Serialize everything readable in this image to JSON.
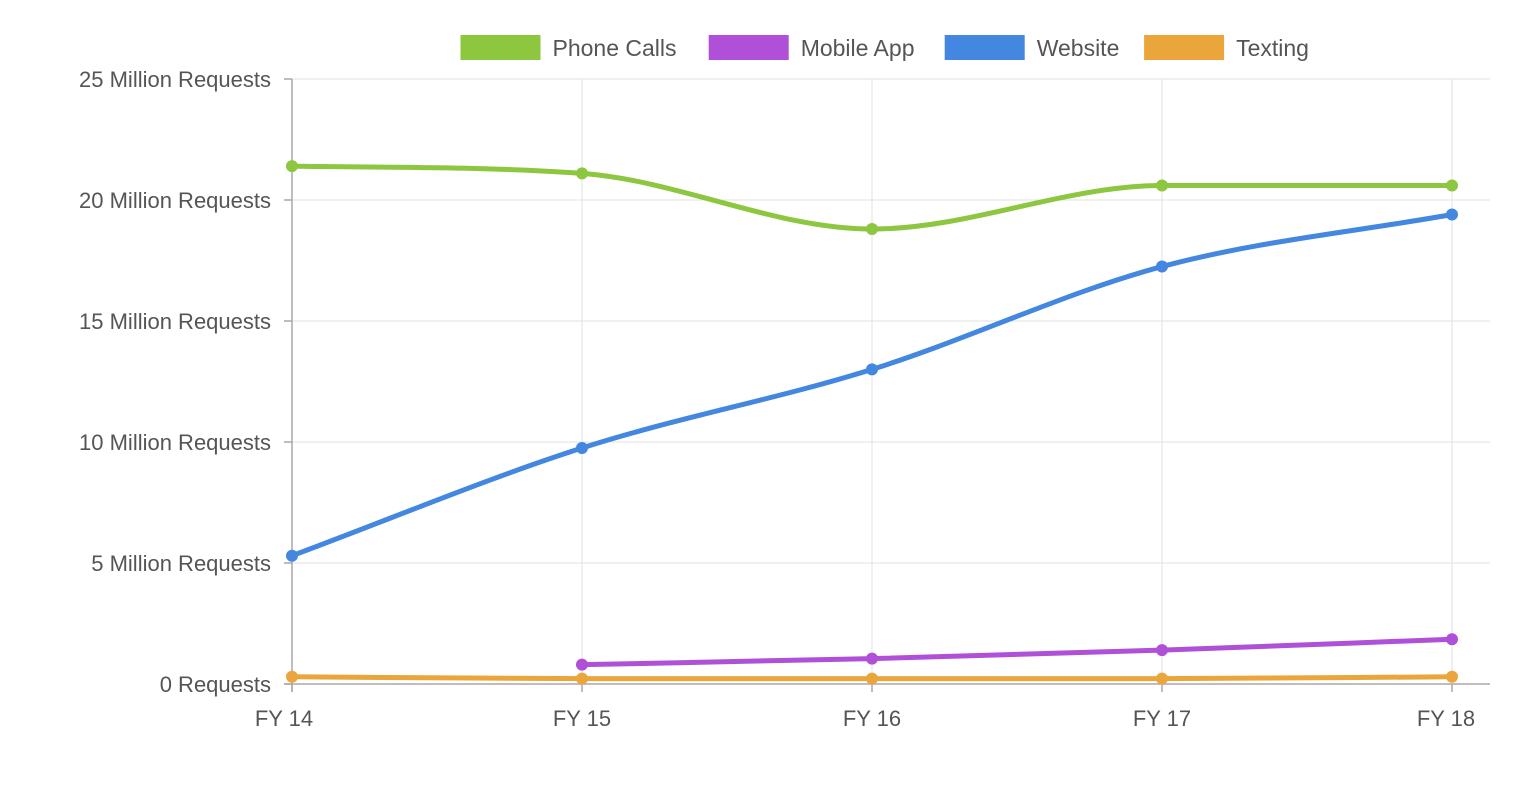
{
  "chart_data": {
    "type": "line",
    "title": "",
    "xlabel": "",
    "ylabel": "",
    "categories": [
      "FY 14",
      "FY 15",
      "FY 16",
      "FY 17",
      "FY 18"
    ],
    "ylim": [
      0,
      25
    ],
    "yticks": [
      0,
      5,
      10,
      15,
      20,
      25
    ],
    "ytick_labels": [
      "0 Requests",
      "5 Million Requests",
      "10 Million Requests",
      "15 Million Requests",
      "20 Million Requests",
      "25 Million Requests"
    ],
    "grid": true,
    "smooth": true,
    "legend_position": "top-center",
    "series": [
      {
        "name": "Phone Calls",
        "color": "#8dc63f",
        "values": [
          21.4,
          21.1,
          18.8,
          20.6,
          20.6
        ]
      },
      {
        "name": "Mobile App",
        "color": "#b050d8",
        "values": [
          null,
          0.8,
          1.05,
          1.4,
          1.85
        ]
      },
      {
        "name": "Website",
        "color": "#4387e0",
        "values": [
          5.3,
          9.75,
          13.0,
          17.25,
          19.4
        ]
      },
      {
        "name": "Texting",
        "color": "#eba63b",
        "values": [
          0.3,
          0.22,
          0.22,
          0.22,
          0.3
        ]
      }
    ]
  }
}
